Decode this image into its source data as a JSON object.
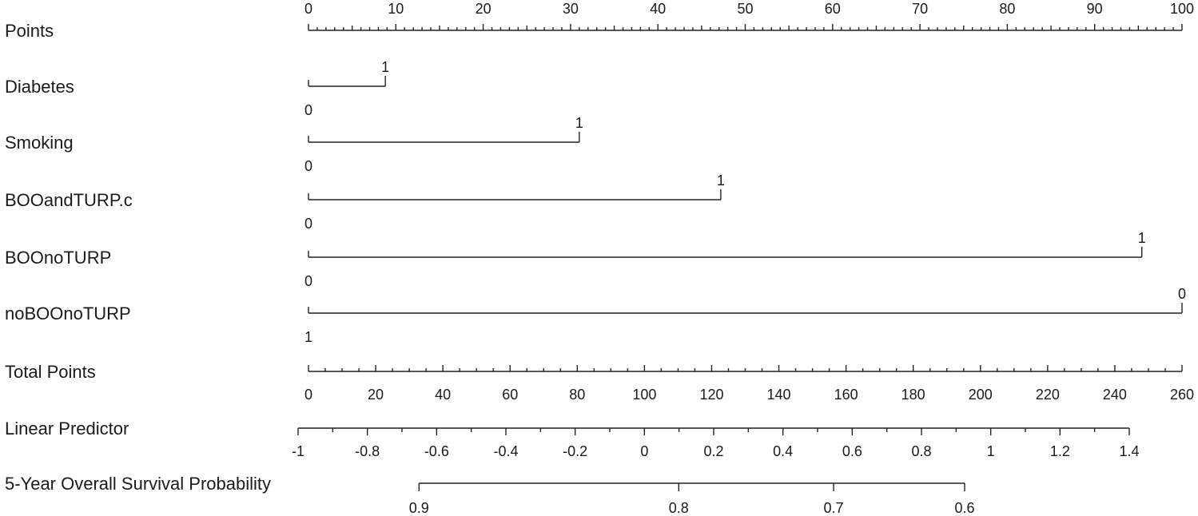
{
  "chart_data": {
    "type": "nomogram",
    "points_scale": {
      "label": "Points",
      "range": [
        0,
        100
      ],
      "tick_labels": [
        "0",
        "10",
        "20",
        "30",
        "40",
        "50",
        "60",
        "70",
        "80",
        "90",
        "100"
      ]
    },
    "predictors": [
      {
        "label": "Diabetes",
        "levels": [
          {
            "value": "0",
            "points": 0
          },
          {
            "value": "1",
            "points": 8.8
          }
        ]
      },
      {
        "label": "Smoking",
        "levels": [
          {
            "value": "0",
            "points": 0
          },
          {
            "value": "1",
            "points": 31
          }
        ]
      },
      {
        "label": "BOOandTURP.c",
        "levels": [
          {
            "value": "0",
            "points": 0
          },
          {
            "value": "1",
            "points": 47.2
          }
        ]
      },
      {
        "label": "BOOnoTURP",
        "levels": [
          {
            "value": "0",
            "points": 0
          },
          {
            "value": "1",
            "points": 95.4
          }
        ]
      },
      {
        "label": "noBOOnoTURP",
        "levels": [
          {
            "value": "1",
            "points": 0
          },
          {
            "value": "0",
            "points": 100
          }
        ]
      }
    ],
    "total_points": {
      "label": "Total Points",
      "range": [
        0,
        260
      ],
      "tick_labels": [
        "0",
        "20",
        "40",
        "60",
        "80",
        "100",
        "120",
        "140",
        "160",
        "180",
        "200",
        "220",
        "240",
        "260"
      ]
    },
    "linear_predictor": {
      "label": "Linear Predictor",
      "tick_values": [
        -1,
        -0.8,
        -0.6,
        -0.4,
        -0.2,
        0,
        0.2,
        0.4,
        0.6,
        0.8,
        1,
        1.2,
        1.4
      ],
      "tick_labels": [
        "-1",
        "-0.8",
        "-0.6",
        "-0.4",
        "-0.2",
        "0",
        "0.2",
        "0.4",
        "0.6",
        "0.8",
        "1",
        "1.2",
        "1.4"
      ],
      "total_points_at": [
        -3.4,
        257.3
      ]
    },
    "survival": {
      "label": "5-Year Overall Survival Probability",
      "tick_labels": [
        "0.9",
        "0.8",
        "0.7",
        "0.6"
      ],
      "tick_values": [
        0.9,
        0.8,
        0.7,
        0.6
      ],
      "total_points_at": [
        32.9,
        110.2,
        156.3,
        195.3
      ]
    }
  }
}
